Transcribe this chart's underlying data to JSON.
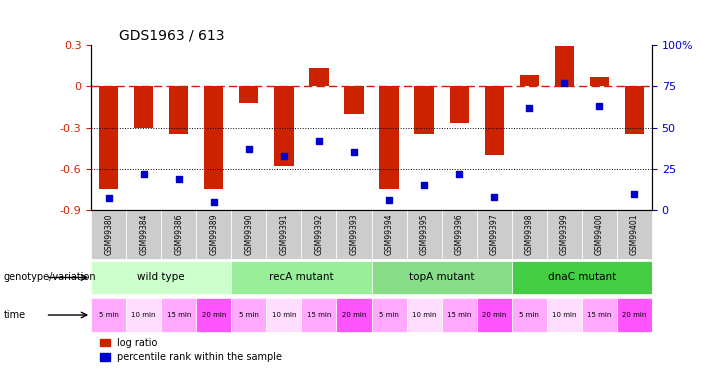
{
  "title": "GDS1963 / 613",
  "samples": [
    "GSM99380",
    "GSM99384",
    "GSM99386",
    "GSM99389",
    "GSM99390",
    "GSM99391",
    "GSM99392",
    "GSM99393",
    "GSM99394",
    "GSM99395",
    "GSM99396",
    "GSM99397",
    "GSM99398",
    "GSM99399",
    "GSM99400",
    "GSM99401"
  ],
  "log_ratio": [
    -0.75,
    -0.3,
    -0.35,
    -0.75,
    -0.12,
    -0.58,
    0.13,
    -0.2,
    -0.75,
    -0.35,
    -0.27,
    -0.5,
    0.08,
    0.29,
    0.07,
    -0.35
  ],
  "percentile": [
    7,
    22,
    19,
    5,
    37,
    33,
    42,
    35,
    6,
    15,
    22,
    8,
    62,
    77,
    63,
    10
  ],
  "bar_color": "#cc2200",
  "dot_color": "#0000cc",
  "ref_line_color": "#cc2200",
  "dotted_line_color": "#000000",
  "ylim_left": [
    -0.9,
    0.3
  ],
  "ylim_right": [
    0,
    100
  ],
  "yticks_left": [
    -0.9,
    -0.6,
    -0.3,
    0,
    0.3
  ],
  "yticks_right": [
    0,
    25,
    50,
    75,
    100
  ],
  "genotype_groups": [
    {
      "label": "wild type",
      "start": 0,
      "end": 4,
      "color": "#ccffcc"
    },
    {
      "label": "recA mutant",
      "start": 4,
      "end": 8,
      "color": "#99ee99"
    },
    {
      "label": "topA mutant",
      "start": 8,
      "end": 12,
      "color": "#88dd88"
    },
    {
      "label": "dnaC mutant",
      "start": 12,
      "end": 16,
      "color": "#44cc44"
    }
  ],
  "time_labels": [
    "5 min",
    "10 min",
    "15 min",
    "20 min",
    "5 min",
    "10 min",
    "15 min",
    "20 min",
    "5 min",
    "10 min",
    "15 min",
    "20 min",
    "5 min",
    "10 min",
    "15 min",
    "20 min"
  ],
  "time_colors": [
    "#ffaaff",
    "#ffddff",
    "#ffaaff",
    "#ff55ff",
    "#ffaaff",
    "#ffddff",
    "#ffaaff",
    "#ff55ff",
    "#ffaaff",
    "#ffddff",
    "#ffaaff",
    "#ff55ff",
    "#ffaaff",
    "#ffddff",
    "#ffaaff",
    "#ff55ff"
  ],
  "right_axis_color": "#0000cc",
  "left_axis_color": "#cc2200",
  "bar_width": 0.55,
  "sample_box_color": "#cccccc"
}
